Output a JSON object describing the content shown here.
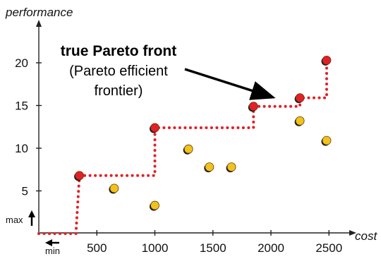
{
  "chart_data": {
    "type": "scatter",
    "xlabel": "cost",
    "ylabel": "performance",
    "x_ticks": [
      500,
      1000,
      1500,
      2000,
      2500
    ],
    "y_ticks": [
      5,
      10,
      15,
      20
    ],
    "xlim": [
      0,
      2800
    ],
    "ylim": [
      0,
      22
    ],
    "annotation": {
      "title": "true Pareto front",
      "subtitle_lines": [
        "(Pareto efficient",
        "frontier)"
      ]
    },
    "direction_labels": {
      "max": "max",
      "min": "min"
    },
    "pareto_points": [
      {
        "x": 350,
        "y": 6.8
      },
      {
        "x": 1000,
        "y": 12.4
      },
      {
        "x": 1850,
        "y": 14.9
      },
      {
        "x": 2250,
        "y": 15.9
      },
      {
        "x": 2480,
        "y": 20.3
      }
    ],
    "dominated_points": [
      {
        "x": 650,
        "y": 5.3
      },
      {
        "x": 1000,
        "y": 3.3
      },
      {
        "x": 1290,
        "y": 9.9
      },
      {
        "x": 1470,
        "y": 7.8
      },
      {
        "x": 1660,
        "y": 7.8
      },
      {
        "x": 2250,
        "y": 13.2
      },
      {
        "x": 2480,
        "y": 10.9
      }
    ],
    "front_line": [
      [
        0,
        0
      ],
      [
        320,
        0
      ],
      [
        350,
        6.8
      ],
      [
        1000,
        6.8
      ],
      [
        1000,
        12.4
      ],
      [
        1850,
        12.4
      ],
      [
        1850,
        14.9
      ],
      [
        2250,
        14.9
      ],
      [
        2250,
        15.9
      ],
      [
        2480,
        15.9
      ],
      [
        2480,
        20.3
      ]
    ],
    "colors": {
      "pareto": "#e41f26",
      "dominated": "#f2c21b",
      "front_line": "#e41f26",
      "axis": "#222222"
    }
  }
}
